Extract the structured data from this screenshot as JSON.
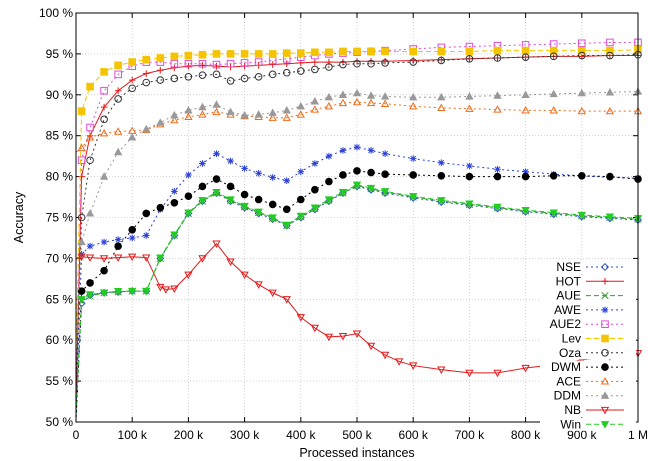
{
  "chart_data": {
    "type": "line",
    "title": "",
    "xlabel": "Processed instances",
    "ylabel": "Accuracy",
    "xlim": [
      0,
      1000000
    ],
    "ylim": [
      50,
      100
    ],
    "grid": true,
    "legend_position": "bottom-right",
    "x_ticks": [
      {
        "value": 0,
        "label": "0"
      },
      {
        "value": 100000,
        "label": "100 k"
      },
      {
        "value": 200000,
        "label": "200 k"
      },
      {
        "value": 300000,
        "label": "300 k"
      },
      {
        "value": 400000,
        "label": "400 k"
      },
      {
        "value": 500000,
        "label": "500 k"
      },
      {
        "value": 600000,
        "label": "600 k"
      },
      {
        "value": 700000,
        "label": "700 k"
      },
      {
        "value": 800000,
        "label": "800 k"
      },
      {
        "value": 900000,
        "label": "900 k"
      },
      {
        "value": 1000000,
        "label": "1 M"
      }
    ],
    "y_ticks": [
      {
        "value": 50,
        "label": "50 %"
      },
      {
        "value": 55,
        "label": "55 %"
      },
      {
        "value": 60,
        "label": "60 %"
      },
      {
        "value": 65,
        "label": "65 %"
      },
      {
        "value": 70,
        "label": "70 %"
      },
      {
        "value": 75,
        "label": "75 %"
      },
      {
        "value": 80,
        "label": "80 %"
      },
      {
        "value": 85,
        "label": "85 %"
      },
      {
        "value": 90,
        "label": "90 %"
      },
      {
        "value": 95,
        "label": "95 %"
      },
      {
        "value": 100,
        "label": "100 %"
      }
    ],
    "series": [
      {
        "name": "NSE",
        "color": "#2a52be",
        "dash": "2,3",
        "marker": "diamond",
        "x": [
          0,
          10000,
          25000,
          50000,
          75000,
          100000,
          125000,
          150000,
          175000,
          200000,
          225000,
          250000,
          275000,
          300000,
          325000,
          350000,
          375000,
          400000,
          425000,
          450000,
          475000,
          500000,
          525000,
          550000,
          600000,
          650000,
          700000,
          750000,
          800000,
          850000,
          900000,
          950000,
          1000000
        ],
        "y": [
          50.5,
          64.5,
          65.5,
          65.8,
          65.9,
          66.0,
          66.0,
          70.0,
          72.8,
          75.5,
          77.0,
          78.0,
          77.0,
          76.2,
          75.5,
          74.8,
          74.0,
          75.0,
          76.0,
          77.0,
          78.0,
          78.8,
          78.4,
          78.0,
          77.4,
          76.9,
          76.5,
          76.1,
          75.7,
          75.4,
          75.1,
          74.9,
          74.7
        ]
      },
      {
        "name": "HOT",
        "color": "#e31a1c",
        "dash": "",
        "marker": "plus",
        "x": [
          0,
          10000,
          25000,
          50000,
          75000,
          100000,
          125000,
          150000,
          175000,
          200000,
          225000,
          250000,
          275000,
          300000,
          325000,
          350000,
          375000,
          400000,
          425000,
          450000,
          475000,
          500000,
          525000,
          550000,
          600000,
          650000,
          700000,
          750000,
          800000,
          850000,
          900000,
          950000,
          1000000
        ],
        "y": [
          52.0,
          80.0,
          85.0,
          88.5,
          90.5,
          91.8,
          92.6,
          93.0,
          93.3,
          93.5,
          93.6,
          93.5,
          93.4,
          93.5,
          93.6,
          93.7,
          93.8,
          93.9,
          94.0,
          94.0,
          94.0,
          94.1,
          94.1,
          94.1,
          94.2,
          94.3,
          94.4,
          94.5,
          94.6,
          94.7,
          94.7,
          94.8,
          94.8
        ]
      },
      {
        "name": "AUE",
        "color": "#33a02c",
        "dash": "5,3",
        "marker": "cross",
        "x": [
          0,
          10000,
          25000,
          50000,
          75000,
          100000,
          125000,
          150000,
          175000,
          200000,
          225000,
          250000,
          275000,
          300000,
          325000,
          350000,
          375000,
          400000,
          425000,
          450000,
          475000,
          500000,
          525000,
          550000,
          600000,
          650000,
          700000,
          750000,
          800000,
          850000,
          900000,
          950000,
          1000000
        ],
        "y": [
          51.0,
          64.8,
          65.4,
          65.8,
          65.9,
          66.0,
          66.0,
          70.0,
          72.8,
          75.5,
          77.0,
          78.0,
          77.1,
          76.3,
          75.6,
          74.9,
          74.0,
          75.1,
          76.1,
          77.1,
          78.0,
          78.9,
          78.5,
          78.1,
          77.5,
          77.0,
          76.6,
          76.2,
          75.8,
          75.5,
          75.2,
          75.0,
          74.8
        ]
      },
      {
        "name": "AWE",
        "color": "#2a40d8",
        "dash": "2,3",
        "marker": "star",
        "x": [
          0,
          10000,
          25000,
          50000,
          75000,
          100000,
          125000,
          150000,
          175000,
          200000,
          225000,
          250000,
          275000,
          300000,
          325000,
          350000,
          375000,
          400000,
          425000,
          450000,
          475000,
          500000,
          525000,
          550000,
          600000,
          650000,
          700000,
          750000,
          800000,
          850000,
          900000,
          950000,
          1000000
        ],
        "y": [
          51.5,
          70.5,
          71.5,
          72.0,
          72.3,
          72.5,
          72.8,
          76.0,
          78.2,
          80.2,
          81.6,
          82.8,
          81.9,
          81.0,
          80.4,
          79.9,
          79.5,
          80.6,
          81.6,
          82.5,
          83.2,
          83.6,
          83.2,
          82.8,
          82.2,
          81.7,
          81.3,
          80.9,
          80.6,
          80.3,
          80.1,
          79.9,
          79.8
        ]
      },
      {
        "name": "AUE2",
        "color": "#e34bd8",
        "dash": "2,3",
        "marker": "square",
        "x": [
          0,
          10000,
          25000,
          50000,
          75000,
          100000,
          125000,
          150000,
          175000,
          200000,
          225000,
          250000,
          275000,
          300000,
          325000,
          350000,
          375000,
          400000,
          425000,
          450000,
          475000,
          500000,
          525000,
          550000,
          600000,
          650000,
          700000,
          750000,
          800000,
          850000,
          900000,
          950000,
          1000000
        ],
        "y": [
          55.0,
          82.0,
          86.0,
          90.5,
          92.5,
          93.5,
          94.0,
          94.0,
          93.8,
          93.8,
          93.8,
          93.7,
          93.8,
          93.9,
          94.0,
          94.2,
          94.4,
          94.6,
          94.8,
          95.0,
          95.1,
          95.2,
          95.3,
          95.4,
          95.6,
          95.8,
          95.9,
          96.0,
          96.1,
          96.2,
          96.3,
          96.4,
          96.4
        ]
      },
      {
        "name": "Lev",
        "color": "#f5c400",
        "dash": "5,3",
        "marker": "square-filled",
        "x": [
          0,
          10000,
          25000,
          50000,
          75000,
          100000,
          125000,
          150000,
          175000,
          200000,
          225000,
          250000,
          275000,
          300000,
          325000,
          350000,
          375000,
          400000,
          425000,
          450000,
          475000,
          500000,
          525000,
          550000,
          600000,
          650000,
          700000,
          750000,
          800000,
          850000,
          900000,
          950000,
          1000000
        ],
        "y": [
          58.0,
          88.0,
          91.0,
          92.8,
          93.6,
          94.0,
          94.3,
          94.5,
          94.7,
          94.8,
          94.9,
          95.0,
          95.0,
          95.0,
          95.0,
          95.0,
          95.1,
          95.1,
          95.2,
          95.2,
          95.3,
          95.3,
          95.3,
          95.3,
          95.3,
          95.3,
          95.3,
          95.4,
          95.4,
          95.4,
          95.4,
          95.4,
          95.5
        ]
      },
      {
        "name": "Oza",
        "color": "#333333",
        "dash": "2,3",
        "marker": "circle",
        "x": [
          0,
          10000,
          25000,
          50000,
          75000,
          100000,
          125000,
          150000,
          175000,
          200000,
          225000,
          250000,
          275000,
          300000,
          325000,
          350000,
          375000,
          400000,
          425000,
          450000,
          475000,
          500000,
          525000,
          550000,
          600000,
          650000,
          700000,
          750000,
          800000,
          850000,
          900000,
          950000,
          1000000
        ],
        "y": [
          54.0,
          75.0,
          82.0,
          87.0,
          89.5,
          90.8,
          91.5,
          91.8,
          92.0,
          92.2,
          92.4,
          92.5,
          91.7,
          92.0,
          92.2,
          92.5,
          92.7,
          92.9,
          93.1,
          93.4,
          93.7,
          93.8,
          93.8,
          93.9,
          94.0,
          94.2,
          94.4,
          94.5,
          94.6,
          94.7,
          94.8,
          94.8,
          94.9
        ]
      },
      {
        "name": "DWM",
        "color": "#000000",
        "dash": "2,3",
        "marker": "circle-filled",
        "x": [
          0,
          10000,
          25000,
          50000,
          75000,
          100000,
          125000,
          150000,
          175000,
          200000,
          225000,
          250000,
          275000,
          300000,
          325000,
          350000,
          375000,
          400000,
          425000,
          450000,
          475000,
          500000,
          525000,
          550000,
          600000,
          650000,
          700000,
          750000,
          800000,
          850000,
          900000,
          950000,
          1000000
        ],
        "y": [
          50.0,
          66.0,
          67.0,
          68.5,
          71.5,
          73.5,
          75.5,
          76.2,
          76.8,
          77.6,
          78.8,
          79.7,
          78.8,
          77.8,
          77.2,
          76.6,
          76.0,
          77.2,
          78.4,
          79.4,
          80.2,
          80.7,
          80.5,
          80.3,
          80.2,
          80.1,
          80.0,
          80.0,
          80.0,
          80.1,
          80.1,
          80.0,
          79.7
        ]
      },
      {
        "name": "ACE",
        "color": "#ef6c1a",
        "dash": "2,3",
        "marker": "triangle",
        "x": [
          0,
          10000,
          25000,
          50000,
          75000,
          100000,
          125000,
          150000,
          175000,
          200000,
          225000,
          250000,
          275000,
          300000,
          325000,
          350000,
          375000,
          400000,
          425000,
          450000,
          475000,
          500000,
          525000,
          550000,
          600000,
          650000,
          700000,
          750000,
          800000,
          850000,
          900000,
          950000,
          1000000
        ],
        "y": [
          83.0,
          83.5,
          84.8,
          85.3,
          85.5,
          85.6,
          85.7,
          86.4,
          86.9,
          87.3,
          87.6,
          87.9,
          87.6,
          87.4,
          87.3,
          87.2,
          87.2,
          87.6,
          88.2,
          88.6,
          89.0,
          89.1,
          89.0,
          88.9,
          88.6,
          88.4,
          88.3,
          88.2,
          88.1,
          88.1,
          88.0,
          88.0,
          88.0
        ]
      },
      {
        "name": "DDM",
        "color": "#999999",
        "dash": "2,3",
        "marker": "triangle-filled",
        "x": [
          0,
          10000,
          25000,
          50000,
          75000,
          100000,
          125000,
          150000,
          175000,
          200000,
          225000,
          250000,
          275000,
          300000,
          325000,
          350000,
          375000,
          400000,
          425000,
          450000,
          475000,
          500000,
          525000,
          550000,
          600000,
          650000,
          700000,
          750000,
          800000,
          850000,
          900000,
          950000,
          1000000
        ],
        "y": [
          60.0,
          72.0,
          75.5,
          80.0,
          83.0,
          84.8,
          85.8,
          86.6,
          87.5,
          88.1,
          88.5,
          88.8,
          87.9,
          87.5,
          87.6,
          87.8,
          88.1,
          88.6,
          89.2,
          89.7,
          90.0,
          90.2,
          89.9,
          89.8,
          89.7,
          89.7,
          89.8,
          89.9,
          90.0,
          90.1,
          90.2,
          90.3,
          90.4
        ]
      },
      {
        "name": "NB",
        "color": "#e31a1c",
        "dash": "",
        "marker": "triangle-down",
        "x": [
          0,
          10000,
          25000,
          50000,
          75000,
          100000,
          125000,
          150000,
          160000,
          175000,
          200000,
          225000,
          250000,
          275000,
          300000,
          325000,
          350000,
          375000,
          400000,
          425000,
          450000,
          475000,
          500000,
          525000,
          550000,
          575000,
          600000,
          650000,
          700000,
          750000,
          800000,
          850000,
          900000,
          950000,
          1000000
        ],
        "y": [
          70.0,
          70.2,
          70.1,
          70.0,
          70.1,
          70.2,
          70.1,
          66.5,
          66.2,
          66.3,
          68.0,
          70.0,
          71.8,
          69.6,
          68.0,
          66.8,
          65.8,
          65.0,
          62.8,
          61.5,
          60.4,
          60.5,
          60.8,
          59.3,
          58.2,
          57.4,
          56.9,
          56.4,
          56.0,
          56.0,
          56.6,
          57.0,
          57.6,
          58.0,
          58.4
        ]
      },
      {
        "name": "Win",
        "color": "#22cc22",
        "dash": "5,3",
        "marker": "triangle-down-filled",
        "x": [
          0,
          10000,
          25000,
          50000,
          75000,
          100000,
          125000,
          150000,
          175000,
          200000,
          225000,
          250000,
          275000,
          300000,
          325000,
          350000,
          375000,
          400000,
          425000,
          450000,
          475000,
          500000,
          525000,
          550000,
          600000,
          650000,
          700000,
          750000,
          800000,
          850000,
          900000,
          950000,
          1000000
        ],
        "y": [
          51.0,
          65.0,
          65.6,
          65.8,
          66.0,
          66.0,
          66.0,
          70.1,
          72.9,
          75.6,
          77.1,
          78.1,
          77.2,
          76.4,
          75.7,
          75.0,
          74.1,
          75.2,
          76.2,
          77.2,
          78.1,
          79.0,
          78.6,
          78.2,
          77.6,
          77.1,
          76.7,
          76.3,
          75.9,
          75.6,
          75.3,
          75.1,
          74.9
        ]
      }
    ]
  }
}
